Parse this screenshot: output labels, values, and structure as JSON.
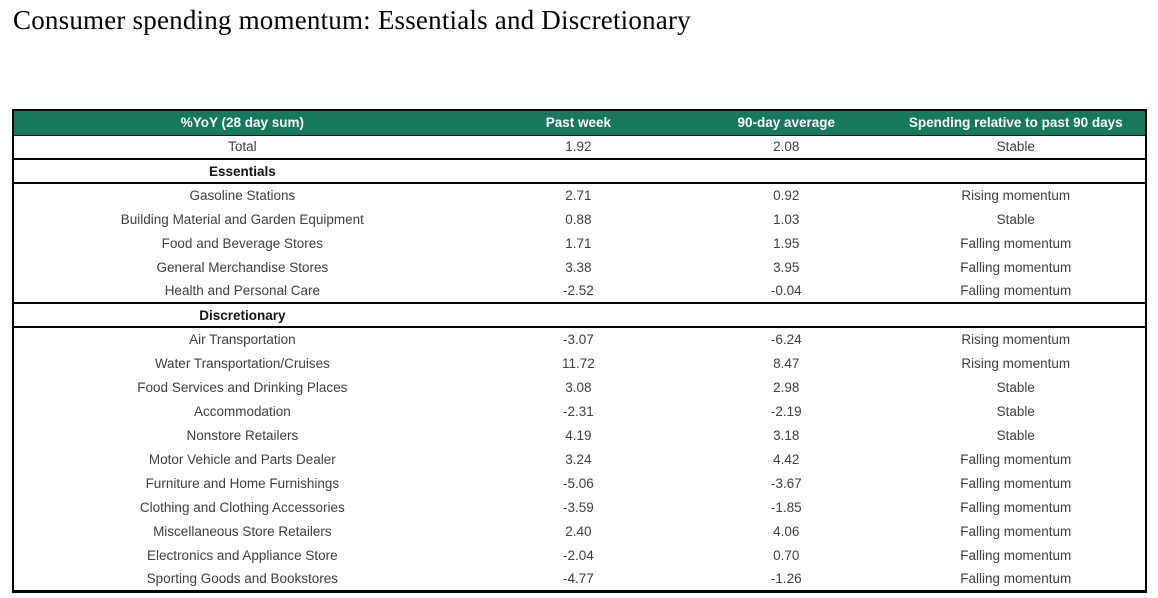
{
  "title": "Consumer spending momentum: Essentials and Discretionary",
  "colors": {
    "header_bg": "#17795B",
    "header_text": "#FFFFFF",
    "rising_bg": "#92D050",
    "rising_text": "#24330E",
    "stable_bg": "#FFC000",
    "stable_text": "#33290A",
    "falling_bg": "#FF0000",
    "falling_text": "#750B00",
    "body_text": "#3F3F3F"
  },
  "chart_data": {
    "type": "table",
    "title": "Consumer spending momentum: Essentials and Discretionary",
    "columns": [
      "%YoY (28 day sum)",
      "Past week",
      "90-day average",
      "Spending relative to past 90 days"
    ],
    "rows": [
      {
        "type": "data",
        "label": "Total",
        "past_week": "1.92",
        "avg_90": "2.08",
        "status": "Stable",
        "status_kind": "stable"
      },
      {
        "type": "section",
        "label": "Essentials"
      },
      {
        "type": "data",
        "label": "Gasoline Stations",
        "past_week": "2.71",
        "avg_90": "0.92",
        "status": "Rising momentum",
        "status_kind": "rising"
      },
      {
        "type": "data",
        "label": "Building Material and Garden Equipment",
        "past_week": "0.88",
        "avg_90": "1.03",
        "status": "Stable",
        "status_kind": "stable"
      },
      {
        "type": "data",
        "label": "Food and Beverage Stores",
        "past_week": "1.71",
        "avg_90": "1.95",
        "status": "Falling momentum",
        "status_kind": "falling"
      },
      {
        "type": "data",
        "label": "General Merchandise Stores",
        "past_week": "3.38",
        "avg_90": "3.95",
        "status": "Falling momentum",
        "status_kind": "falling"
      },
      {
        "type": "data",
        "label": "Health and Personal Care",
        "past_week": "-2.52",
        "avg_90": "-0.04",
        "status": "Falling momentum",
        "status_kind": "falling"
      },
      {
        "type": "section",
        "label": "Discretionary"
      },
      {
        "type": "data",
        "label": "Air Transportation",
        "past_week": "-3.07",
        "avg_90": "-6.24",
        "status": "Rising momentum",
        "status_kind": "rising"
      },
      {
        "type": "data",
        "label": "Water Transportation/Cruises",
        "past_week": "11.72",
        "avg_90": "8.47",
        "status": "Rising momentum",
        "status_kind": "rising"
      },
      {
        "type": "data",
        "label": "Food Services and Drinking Places",
        "past_week": "3.08",
        "avg_90": "2.98",
        "status": "Stable",
        "status_kind": "stable"
      },
      {
        "type": "data",
        "label": "Accommodation",
        "past_week": "-2.31",
        "avg_90": "-2.19",
        "status": "Stable",
        "status_kind": "stable"
      },
      {
        "type": "data",
        "label": "Nonstore Retailers",
        "past_week": "4.19",
        "avg_90": "3.18",
        "status": "Stable",
        "status_kind": "stable"
      },
      {
        "type": "data",
        "label": "Motor Vehicle and Parts Dealer",
        "past_week": "3.24",
        "avg_90": "4.42",
        "status": "Falling momentum",
        "status_kind": "falling"
      },
      {
        "type": "data",
        "label": "Furniture and Home Furnishings",
        "past_week": "-5.06",
        "avg_90": "-3.67",
        "status": "Falling momentum",
        "status_kind": "falling"
      },
      {
        "type": "data",
        "label": "Clothing and Clothing Accessories",
        "past_week": "-3.59",
        "avg_90": "-1.85",
        "status": "Falling momentum",
        "status_kind": "falling"
      },
      {
        "type": "data",
        "label": "Miscellaneous Store Retailers",
        "past_week": "2.40",
        "avg_90": "4.06",
        "status": "Falling momentum",
        "status_kind": "falling"
      },
      {
        "type": "data",
        "label": "Electronics and Appliance Store",
        "past_week": "-2.04",
        "avg_90": "0.70",
        "status": "Falling momentum",
        "status_kind": "falling"
      },
      {
        "type": "data",
        "label": "Sporting Goods and Bookstores",
        "past_week": "-4.77",
        "avg_90": "-1.26",
        "status": "Falling momentum",
        "status_kind": "falling"
      }
    ]
  }
}
